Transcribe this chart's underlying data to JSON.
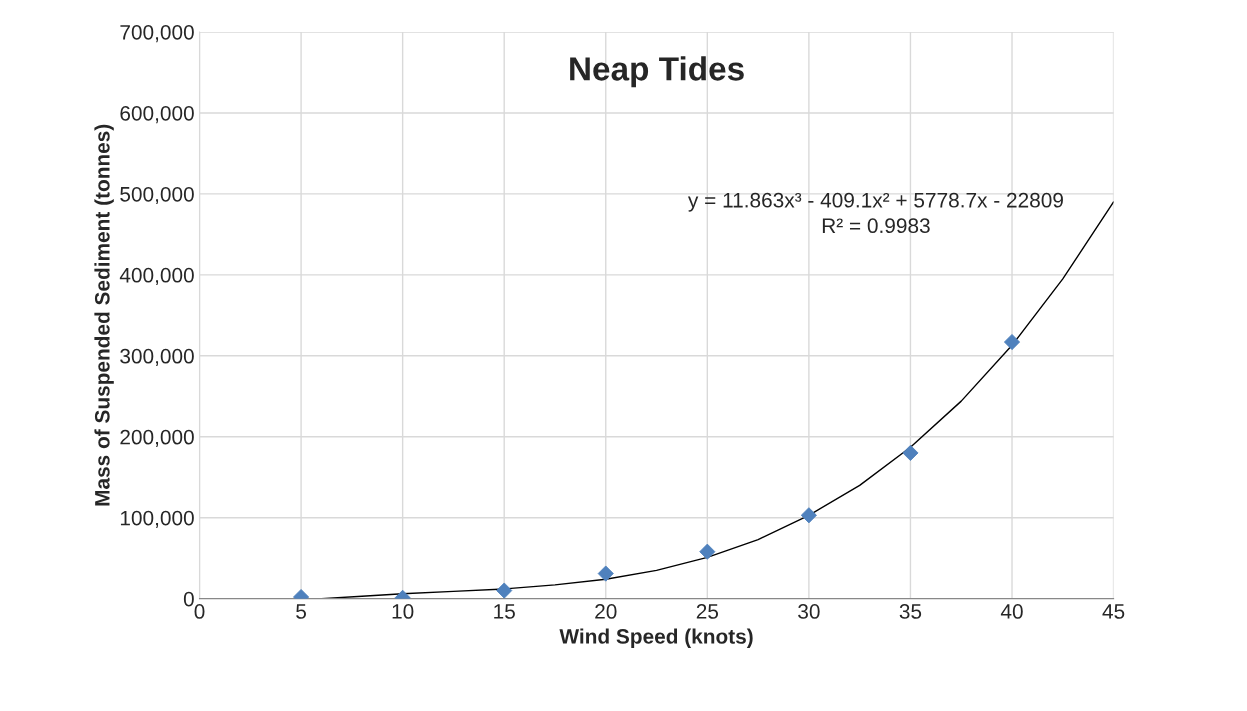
{
  "chart_data": {
    "type": "scatter",
    "title": "Neap Tides",
    "xlabel": "Wind Speed (knots)",
    "ylabel": "Mass of Suspended Sediment (tonnes)",
    "annotations": [
      "y = 11.863x³ - 409.1x² + 5778.7x - 22809",
      "R² = 0.9983"
    ],
    "series": [
      {
        "color": "#4f81bd",
        "marker": "diamond",
        "x": [
          5,
          10,
          15,
          20,
          25,
          30,
          35,
          40
        ],
        "values": [
          2000,
          1000,
          10000,
          31000,
          58000,
          103000,
          180000,
          317000
        ]
      },
      {
        "type": "line",
        "color": "#000000",
        "marker": "none",
        "line_style": "solid",
        "x": [
          6,
          8,
          10,
          12.5,
          15,
          17.5,
          20,
          22.5,
          25,
          27.5,
          30,
          32.5,
          35,
          37.5,
          40,
          42.5,
          45
        ],
        "values": [
          0,
          3000,
          6000,
          9000,
          12000,
          17000,
          24000,
          35000,
          51000,
          73000,
          103000,
          140000,
          187000,
          244000,
          313000,
          395000,
          490000
        ]
      }
    ],
    "xlim": [
      0,
      45
    ],
    "xticks": [
      0,
      5,
      10,
      15,
      20,
      25,
      30,
      35,
      40,
      45
    ],
    "ylim": [
      0,
      700000
    ],
    "yticks": [
      {
        "value": 0,
        "label": "0"
      },
      {
        "value": 100000,
        "label": "100,000"
      },
      {
        "value": 200000,
        "label": "200,000"
      },
      {
        "value": 300000,
        "label": "300,000"
      },
      {
        "value": 400000,
        "label": "400,000"
      },
      {
        "value": 500000,
        "label": "500,000"
      },
      {
        "value": 600000,
        "label": "600,000"
      },
      {
        "value": 700000,
        "label": "700,000"
      }
    ],
    "grid": true,
    "legend": false
  }
}
